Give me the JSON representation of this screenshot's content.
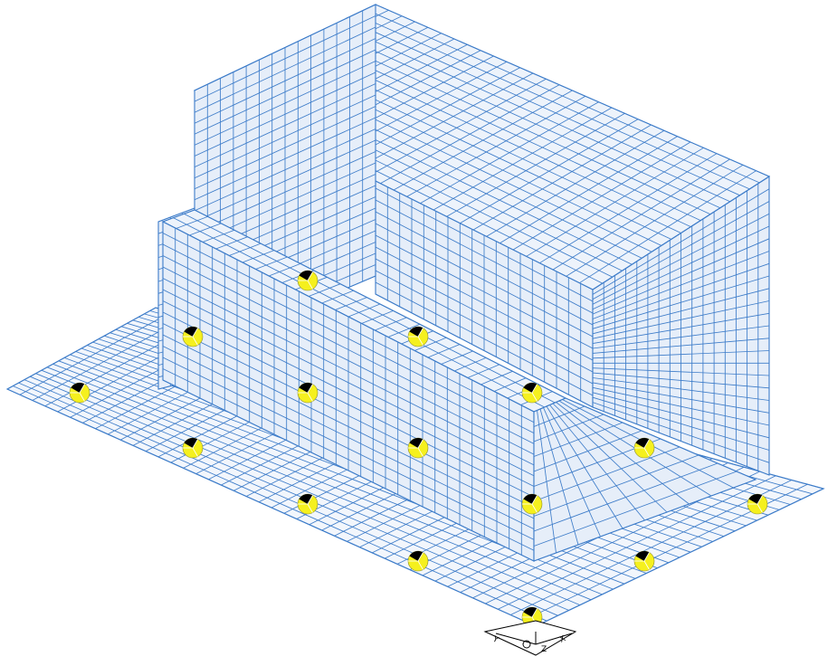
{
  "viewport": {
    "background": "#ffffff",
    "mesh_color": "#3d7cc9",
    "face_fill_top": "#edf3fb",
    "face_fill_side": "#e6eef9",
    "face_fill_plate": "#f2f6fc"
  },
  "supports": {
    "icon": "support-node-icon",
    "fill_color": "#f5f01e",
    "marker_color": "#000000",
    "count": 15
  },
  "axis_triad": {
    "labels": {
      "x": "X",
      "y": "Y",
      "z": "Z"
    }
  },
  "model": {
    "parts": [
      "foundation-slab",
      "rear-block",
      "tall-column",
      "front-wall"
    ]
  }
}
